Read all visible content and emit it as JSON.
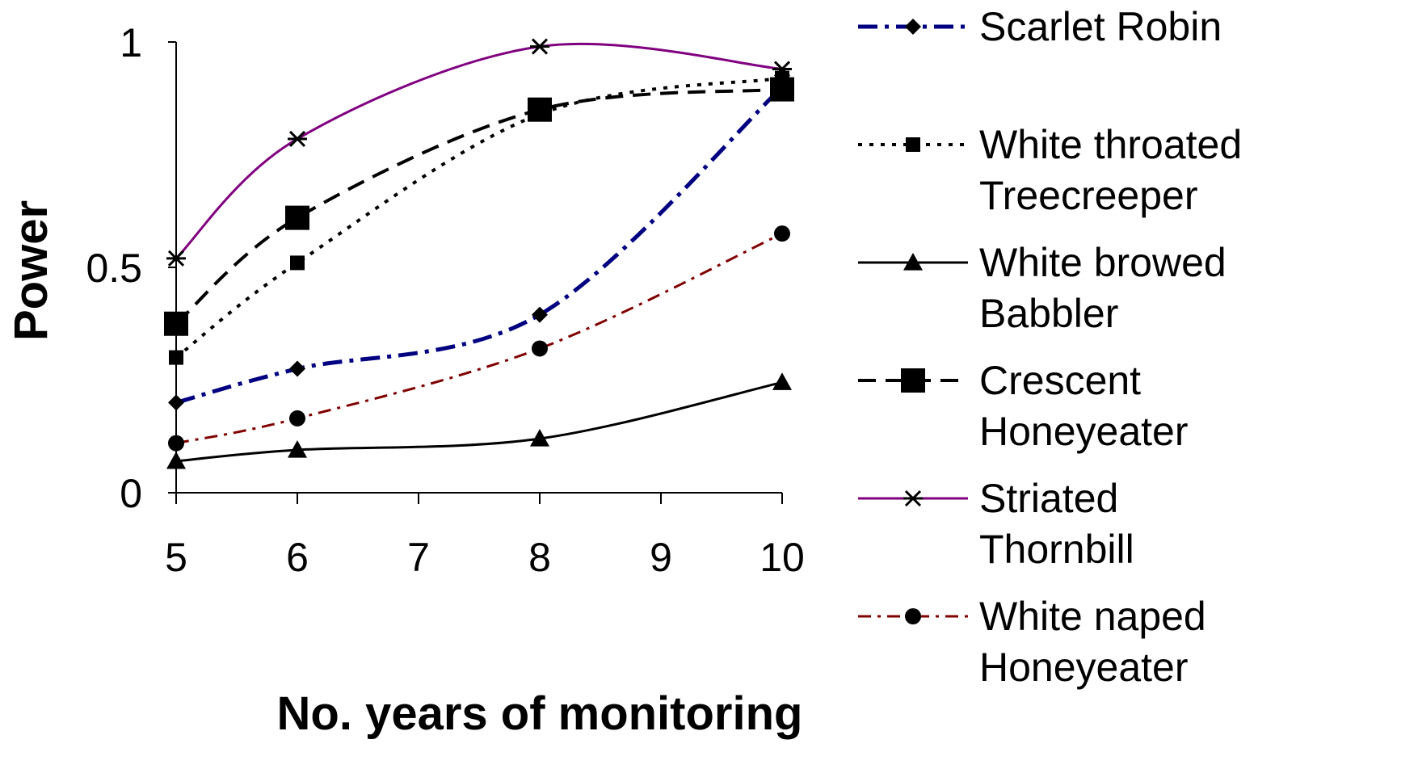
{
  "chart_data": {
    "type": "line",
    "xlabel": "No. years of monitoring",
    "ylabel": "Power",
    "xlim": [
      5,
      10
    ],
    "ylim": [
      0,
      1
    ],
    "xticks": [
      "5",
      "6",
      "7",
      "8",
      "9",
      "10"
    ],
    "yticks": [
      "0",
      "0.5",
      "1"
    ],
    "grid": false,
    "legend_position": "right",
    "series": [
      {
        "name_lines": [
          "Scarlet Robin"
        ],
        "x": [
          5,
          6,
          8,
          10
        ],
        "y": [
          0.2,
          0.275,
          0.395,
          0.9
        ],
        "color": "#000080",
        "dash": "24,9,5,9",
        "stroke_width": 5,
        "marker": "diamond"
      },
      {
        "name_lines": [
          "White throated",
          "Treecreeper"
        ],
        "x": [
          5,
          6,
          8,
          10
        ],
        "y": [
          0.3,
          0.51,
          0.84,
          0.92
        ],
        "color": "#000000",
        "dash": "5,9",
        "stroke_width": 4,
        "marker": "square-small"
      },
      {
        "name_lines": [
          "White browed",
          "Babbler"
        ],
        "x": [
          5,
          6,
          8,
          10
        ],
        "y": [
          0.07,
          0.095,
          0.12,
          0.245
        ],
        "color": "#000000",
        "dash": "",
        "stroke_width": 3,
        "marker": "triangle"
      },
      {
        "name_lines": [
          "Crescent",
          "Honeyeater"
        ],
        "x": [
          5,
          6,
          8,
          10
        ],
        "y": [
          0.375,
          0.61,
          0.85,
          0.895
        ],
        "color": "#000000",
        "dash": "22,12",
        "stroke_width": 4,
        "marker": "square-large"
      },
      {
        "name_lines": [
          "Striated",
          "Thornbill"
        ],
        "x": [
          5,
          6,
          8,
          10
        ],
        "y": [
          0.52,
          0.785,
          0.99,
          0.94
        ],
        "color": "#800080",
        "dash": "",
        "stroke_width": 3,
        "marker": "asterisk"
      },
      {
        "name_lines": [
          "White naped",
          "Honeyeater"
        ],
        "x": [
          5,
          6,
          8,
          10
        ],
        "y": [
          0.11,
          0.165,
          0.32,
          0.575
        ],
        "color": "#800000",
        "dash": "16,8,4,8",
        "stroke_width": 3,
        "marker": "circle"
      }
    ]
  }
}
